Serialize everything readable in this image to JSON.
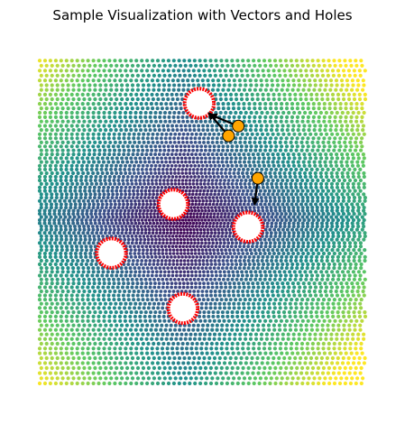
{
  "chart_data": {
    "type": "scatter",
    "title": "Sample Visualization with Vectors and Holes",
    "xlabel": "",
    "ylabel": "",
    "xlim": [
      0,
      1
    ],
    "ylim": [
      0,
      1
    ],
    "axes_visible": false,
    "grid": false,
    "legend": "none",
    "colormap": "viridis",
    "colormap_stops": [
      "#440154",
      "#3b528b",
      "#21918c",
      "#5ec962",
      "#fde725"
    ],
    "point_style": {
      "grid_step": 0.0165,
      "min_step": 0.0095,
      "marker_radius": 2.1
    },
    "holes": [
      {
        "x": 0.49,
        "y": 0.86,
        "radius": 0.045
      },
      {
        "x": 0.41,
        "y": 0.55,
        "radius": 0.045
      },
      {
        "x": 0.64,
        "y": 0.48,
        "radius": 0.045
      },
      {
        "x": 0.22,
        "y": 0.4,
        "radius": 0.045
      },
      {
        "x": 0.44,
        "y": 0.23,
        "radius": 0.045
      }
    ],
    "hole_fill_color": "#ffffff",
    "hole_edge_color": "#ff0000",
    "vectors": [
      {
        "x": 0.61,
        "y": 0.79,
        "dx": -0.085,
        "dy": 0.035
      },
      {
        "x": 0.58,
        "y": 0.76,
        "dx": -0.06,
        "dy": 0.07
      },
      {
        "x": 0.67,
        "y": 0.63,
        "dx": -0.01,
        "dy": -0.08
      }
    ],
    "vector_color": "#000000",
    "vector_point_color": "#ffa500",
    "vector_point_edge_color": "#000000"
  }
}
